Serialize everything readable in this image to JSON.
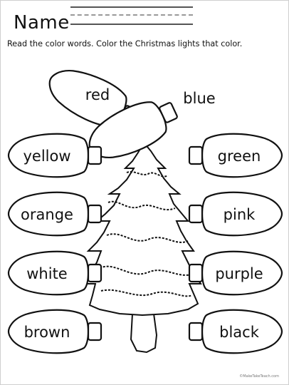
{
  "header": {
    "name_label": "Name",
    "instructions": "Read the color words.  Color the Christmas lights that color."
  },
  "lights": [
    {
      "word": "red"
    },
    {
      "word": "blue"
    },
    {
      "word": "yellow"
    },
    {
      "word": "green"
    },
    {
      "word": "orange"
    },
    {
      "word": "pink"
    },
    {
      "word": "white"
    },
    {
      "word": "purple"
    },
    {
      "word": "brown"
    },
    {
      "word": "black"
    }
  ],
  "footer": {
    "credit": "©MakeTakeTeach.com"
  }
}
